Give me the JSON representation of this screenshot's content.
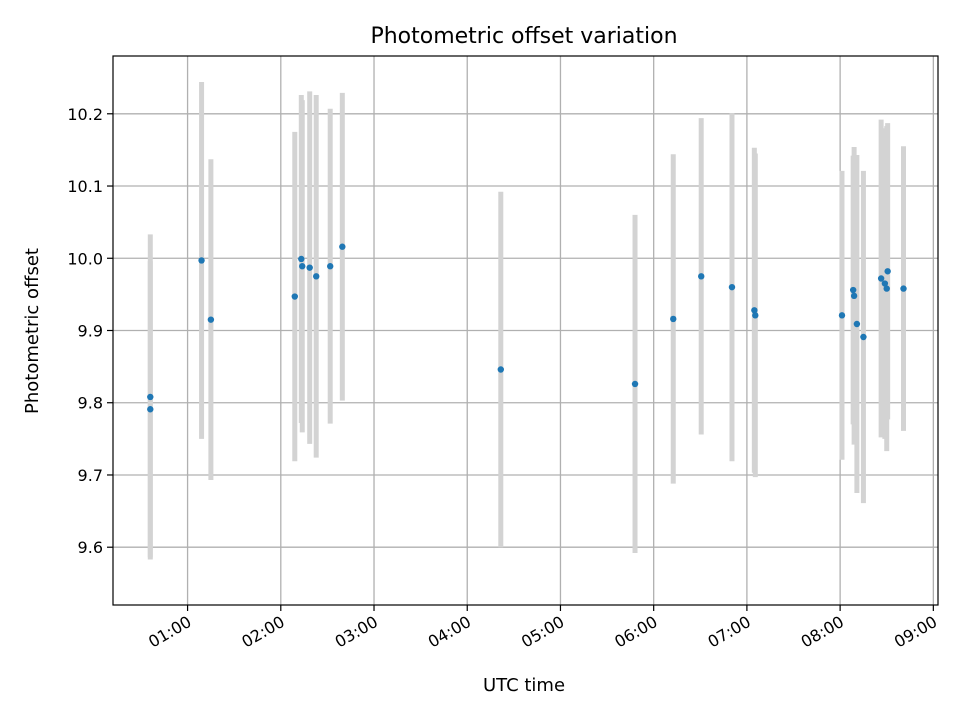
{
  "chart_data": {
    "type": "scatter",
    "title": "Photometric offset variation",
    "xlabel": "UTC time",
    "ylabel": "Photometric offset",
    "x_unit": "hours (UTC)",
    "xlim": [
      0.2,
      9.05
    ],
    "ylim": [
      9.52,
      10.28
    ],
    "grid": true,
    "colors": {
      "marker": "#1f77b4",
      "errorbar": "#d3d3d3",
      "grid": "#b0b0b0",
      "axes": "#000000"
    },
    "x_ticks": [
      {
        "value": 1,
        "label": "01:00"
      },
      {
        "value": 2,
        "label": "02:00"
      },
      {
        "value": 3,
        "label": "03:00"
      },
      {
        "value": 4,
        "label": "04:00"
      },
      {
        "value": 5,
        "label": "05:00"
      },
      {
        "value": 6,
        "label": "06:00"
      },
      {
        "value": 7,
        "label": "07:00"
      },
      {
        "value": 8,
        "label": "08:00"
      },
      {
        "value": 9,
        "label": "09:00"
      }
    ],
    "y_ticks": [
      {
        "value": 9.6,
        "label": "9.6"
      },
      {
        "value": 9.7,
        "label": "9.7"
      },
      {
        "value": 9.8,
        "label": "9.8"
      },
      {
        "value": 9.9,
        "label": "9.9"
      },
      {
        "value": 10.0,
        "label": "10.0"
      },
      {
        "value": 10.1,
        "label": "10.1"
      },
      {
        "value": 10.2,
        "label": "10.2"
      }
    ],
    "points": [
      {
        "x": 0.6,
        "y": 9.808,
        "err": 0.225
      },
      {
        "x": 0.6,
        "y": 9.791,
        "err": 0.205
      },
      {
        "x": 1.15,
        "y": 9.997,
        "err": 0.247
      },
      {
        "x": 1.25,
        "y": 9.915,
        "err": 0.222
      },
      {
        "x": 2.15,
        "y": 9.947,
        "err": 0.228
      },
      {
        "x": 2.22,
        "y": 9.999,
        "err": 0.227
      },
      {
        "x": 2.23,
        "y": 9.989,
        "err": 0.23
      },
      {
        "x": 2.31,
        "y": 9.987,
        "err": 0.244
      },
      {
        "x": 2.38,
        "y": 9.975,
        "err": 0.251
      },
      {
        "x": 2.53,
        "y": 9.989,
        "err": 0.218
      },
      {
        "x": 2.66,
        "y": 10.016,
        "err": 0.213
      },
      {
        "x": 4.36,
        "y": 9.846,
        "err": 0.246
      },
      {
        "x": 5.8,
        "y": 9.826,
        "err": 0.234
      },
      {
        "x": 6.21,
        "y": 9.916,
        "err": 0.228
      },
      {
        "x": 6.51,
        "y": 9.975,
        "err": 0.219
      },
      {
        "x": 6.84,
        "y": 9.96,
        "err": 0.241
      },
      {
        "x": 7.08,
        "y": 9.928,
        "err": 0.225
      },
      {
        "x": 7.09,
        "y": 9.921,
        "err": 0.224
      },
      {
        "x": 8.02,
        "y": 9.921,
        "err": 0.2
      },
      {
        "x": 8.14,
        "y": 9.956,
        "err": 0.186
      },
      {
        "x": 8.15,
        "y": 9.948,
        "err": 0.206
      },
      {
        "x": 8.18,
        "y": 9.909,
        "err": 0.234
      },
      {
        "x": 8.25,
        "y": 9.891,
        "err": 0.23
      },
      {
        "x": 8.44,
        "y": 9.972,
        "err": 0.22
      },
      {
        "x": 8.48,
        "y": 9.965,
        "err": 0.215
      },
      {
        "x": 8.5,
        "y": 9.958,
        "err": 0.225
      },
      {
        "x": 8.51,
        "y": 9.982,
        "err": 0.205
      },
      {
        "x": 8.68,
        "y": 9.958,
        "err": 0.197
      }
    ]
  }
}
